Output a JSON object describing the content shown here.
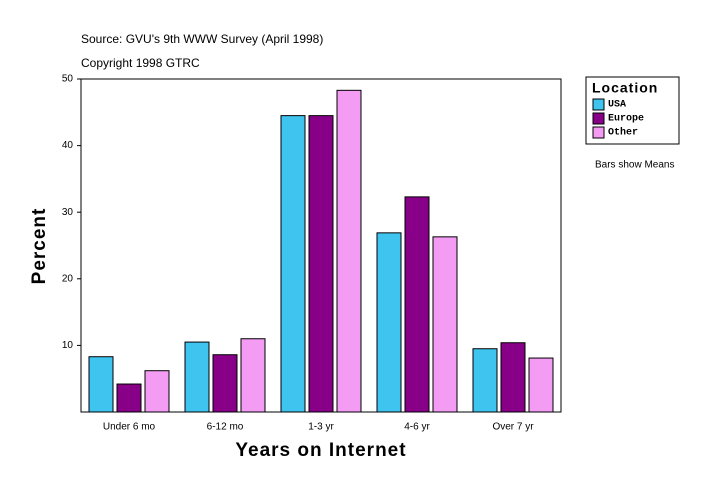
{
  "chart_data": {
    "type": "bar",
    "title": "Source: GVU's 9th WWW Survey (April 1998)",
    "subtitle": "Copyright 1998 GTRC",
    "x_label": "Years on Internet",
    "y_label": "Percent",
    "legend_title": "Location",
    "note": "Bars show Means",
    "categories": [
      "Under 6 mo",
      "6-12 mo",
      "1-3 yr",
      "4-6 yr",
      "Over 7 yr"
    ],
    "series": [
      {
        "name": "USA",
        "color": "#3fc4f0",
        "values": [
          8.3,
          10.5,
          44.5,
          26.9,
          9.5
        ]
      },
      {
        "name": "Europe",
        "color": "#880088",
        "values": [
          4.2,
          8.6,
          44.5,
          32.3,
          10.4
        ]
      },
      {
        "name": "Other",
        "color": "#f49cf4",
        "values": [
          6.2,
          11.0,
          48.3,
          26.3,
          8.1
        ]
      }
    ],
    "ylim": [
      0,
      50
    ],
    "yticks": [
      10,
      20,
      30,
      40,
      50
    ],
    "grid": false,
    "legend": "right"
  }
}
